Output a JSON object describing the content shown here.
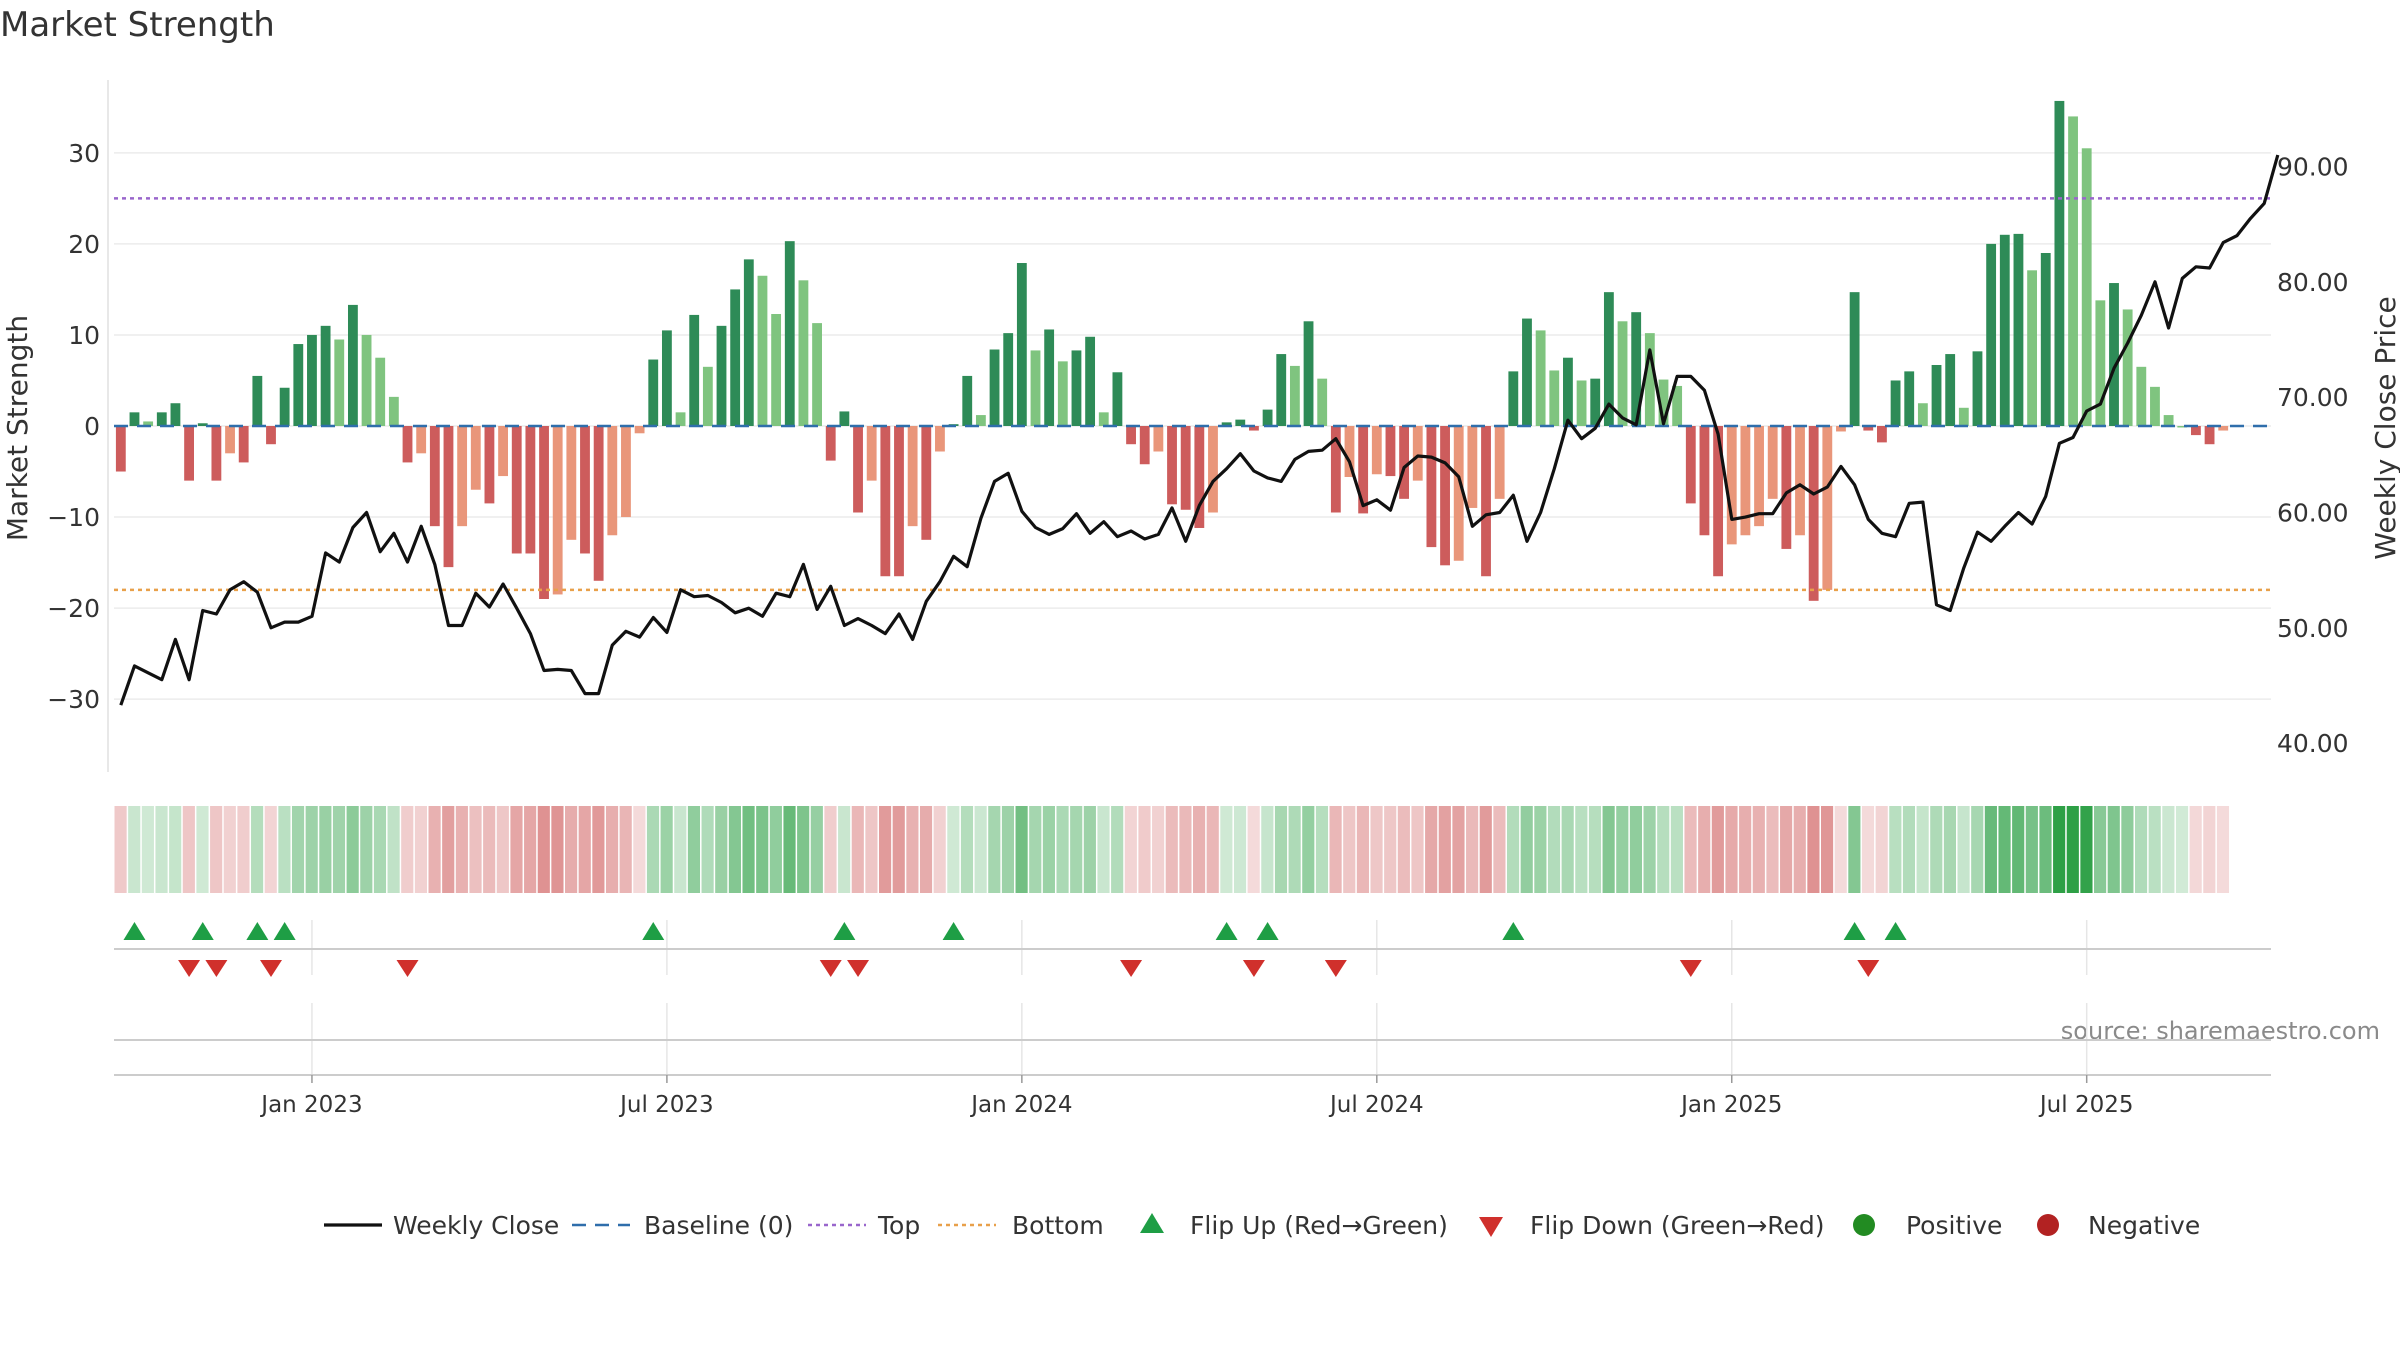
{
  "chart_data": {
    "type": "bar",
    "title": "Market Strength",
    "ylabel": "Market Strength",
    "y2label": "Weekly Close Price",
    "source": "source: sharemaestro.com",
    "ylim": [
      -38,
      38
    ],
    "y2lim": [
      37.5,
      97.5
    ],
    "yticks": [
      30,
      20,
      10,
      0,
      -10,
      -20,
      -30
    ],
    "ytick_labels": [
      "30",
      "20",
      "10",
      "0",
      "−10",
      "−20",
      "−30"
    ],
    "y2ticks": [
      90,
      80,
      70,
      60,
      50,
      40
    ],
    "y2tick_labels": [
      "90.00",
      "80.00",
      "70.00",
      "60.00",
      "50.00",
      "40.00"
    ],
    "top_threshold": 25,
    "bottom_threshold": -18,
    "xtick_labels": [
      "Jan 2023",
      "Jul 2023",
      "Jan 2024",
      "Jul 2024",
      "Jan 2025",
      "Jul 2025"
    ],
    "xtick_weeks": [
      14.5,
      40.5,
      66.5,
      92.5,
      118.5,
      144.5
    ],
    "weeks": 158,
    "strength": [
      -5,
      1.5,
      0.5,
      1.5,
      2.5,
      -6,
      0.3,
      -6,
      -3,
      -4,
      5.5,
      -2,
      4.2,
      9,
      10,
      11,
      9.5,
      13.3,
      10,
      7.5,
      3.2,
      -4,
      -3,
      -11,
      -15.5,
      -11,
      -7,
      -8.5,
      -5.5,
      -14,
      -14,
      -19,
      -18.5,
      -12.5,
      -14,
      -17,
      -12,
      -10,
      -0.8,
      7.3,
      10.5,
      1.5,
      12.2,
      6.5,
      11,
      15,
      18.3,
      16.5,
      12.3,
      20.3,
      16,
      11.3,
      -3.8,
      1.6,
      -9.5,
      -6,
      -16.5,
      -16.5,
      -11,
      -12.5,
      -2.8,
      0.2,
      5.5,
      1.2,
      8.4,
      10.2,
      17.9,
      8.3,
      10.6,
      7.1,
      8.3,
      9.8,
      1.5,
      5.9,
      -2,
      -4.2,
      -2.8,
      -8.6,
      -9.2,
      -11.2,
      -9.5,
      0.4,
      0.7,
      -0.5,
      1.8,
      7.9,
      6.6,
      11.5,
      5.2,
      -9.5,
      -5.6,
      -9.6,
      -5.3,
      -5.5,
      -8,
      -6,
      -13.3,
      -15.3,
      -14.8,
      -9,
      -16.5,
      -8,
      6,
      11.8,
      10.5,
      6.1,
      7.5,
      5,
      5.2,
      14.7,
      11.5,
      12.5,
      10.2,
      5.1,
      4.4,
      -8.5,
      -12,
      -16.5,
      -13,
      -12,
      -11,
      -8,
      -13.5,
      -12,
      -19.2,
      -18,
      -0.6,
      14.7,
      -0.5,
      -1.8,
      5,
      6,
      2.5,
      6.7,
      7.9,
      2,
      8.2,
      20,
      21,
      21.1,
      17.1,
      19,
      35.7,
      34,
      30.5,
      13.8,
      15.7,
      12.8,
      6.5,
      4.3,
      1.2,
      0,
      -1,
      -2,
      -0.5
    ],
    "close": [
      43.3,
      46.7,
      46.1,
      45.5,
      49,
      45.5,
      51.5,
      51.2,
      53.3,
      54,
      53.1,
      50,
      50.5,
      50.5,
      51,
      56.5,
      55.7,
      58.7,
      60,
      56.6,
      58.2,
      55.7,
      58.8,
      55.5,
      50.2,
      50.2,
      53,
      51.8,
      53.8,
      51.7,
      49.5,
      46.3,
      46.4,
      46.3,
      44.3,
      44.3,
      48.5,
      49.7,
      49.2,
      50.9,
      49.6,
      53.3,
      52.7,
      52.8,
      52.2,
      51.3,
      51.7,
      51,
      53,
      52.7,
      55.5,
      51.6,
      53.6,
      50.2,
      50.8,
      50.2,
      49.5,
      51.2,
      49,
      52.3,
      54,
      56.2,
      55.3,
      59.5,
      62.7,
      63.4,
      60.1,
      58.7,
      58.1,
      58.6,
      59.9,
      58.2,
      59.2,
      57.9,
      58.4,
      57.7,
      58.1,
      60.4,
      57.5,
      60.6,
      62.7,
      63.8,
      65.1,
      63.6,
      63,
      62.7,
      64.6,
      65.3,
      65.4,
      66.4,
      64.4,
      60.6,
      61.1,
      60.2,
      63.9,
      64.9,
      64.8,
      64.3,
      63.1,
      58.8,
      59.8,
      60,
      61.5,
      57.5,
      60,
      63.8,
      68,
      66.4,
      67.3,
      69.4,
      68.2,
      67.6,
      74.1,
      67.7,
      71.8,
      71.8,
      70.6,
      66.8,
      59.4,
      59.6,
      59.9,
      59.9,
      61.7,
      62.4,
      61.6,
      62.2,
      64,
      62.4,
      59.4,
      58.2,
      57.9,
      60.8,
      60.9,
      52,
      51.5,
      55.2,
      58.3,
      57.5,
      58.8,
      60,
      59,
      61.4,
      66,
      66.5,
      68.8,
      69.4,
      72.5,
      74.7,
      77.1,
      80,
      76,
      80.3,
      81.3,
      81.2,
      83.4,
      84,
      85.5,
      86.8,
      91
    ]
  },
  "legend": {
    "weekly_close": "Weekly Close",
    "baseline": "Baseline (0)",
    "top": "Top",
    "bottom": "Bottom",
    "flip_up": "Flip Up (Red→Green)",
    "flip_down": "Flip Down (Green→Red)",
    "positive": "Positive",
    "negative": "Negative"
  },
  "colors": {
    "pos_strong": "#2e8b57",
    "pos_light": "#7fc47f",
    "neg_strong": "#cd5c5c",
    "neg_light": "#e9967a",
    "top_line": "#9966cc",
    "bottom_line": "#e8a04a",
    "baseline": "#2f6eab",
    "close_line": "#111111",
    "flip_up": "#1e9e45",
    "flip_down": "#d0302c",
    "positive_dot": "#228b22",
    "negative_dot": "#b22222"
  }
}
